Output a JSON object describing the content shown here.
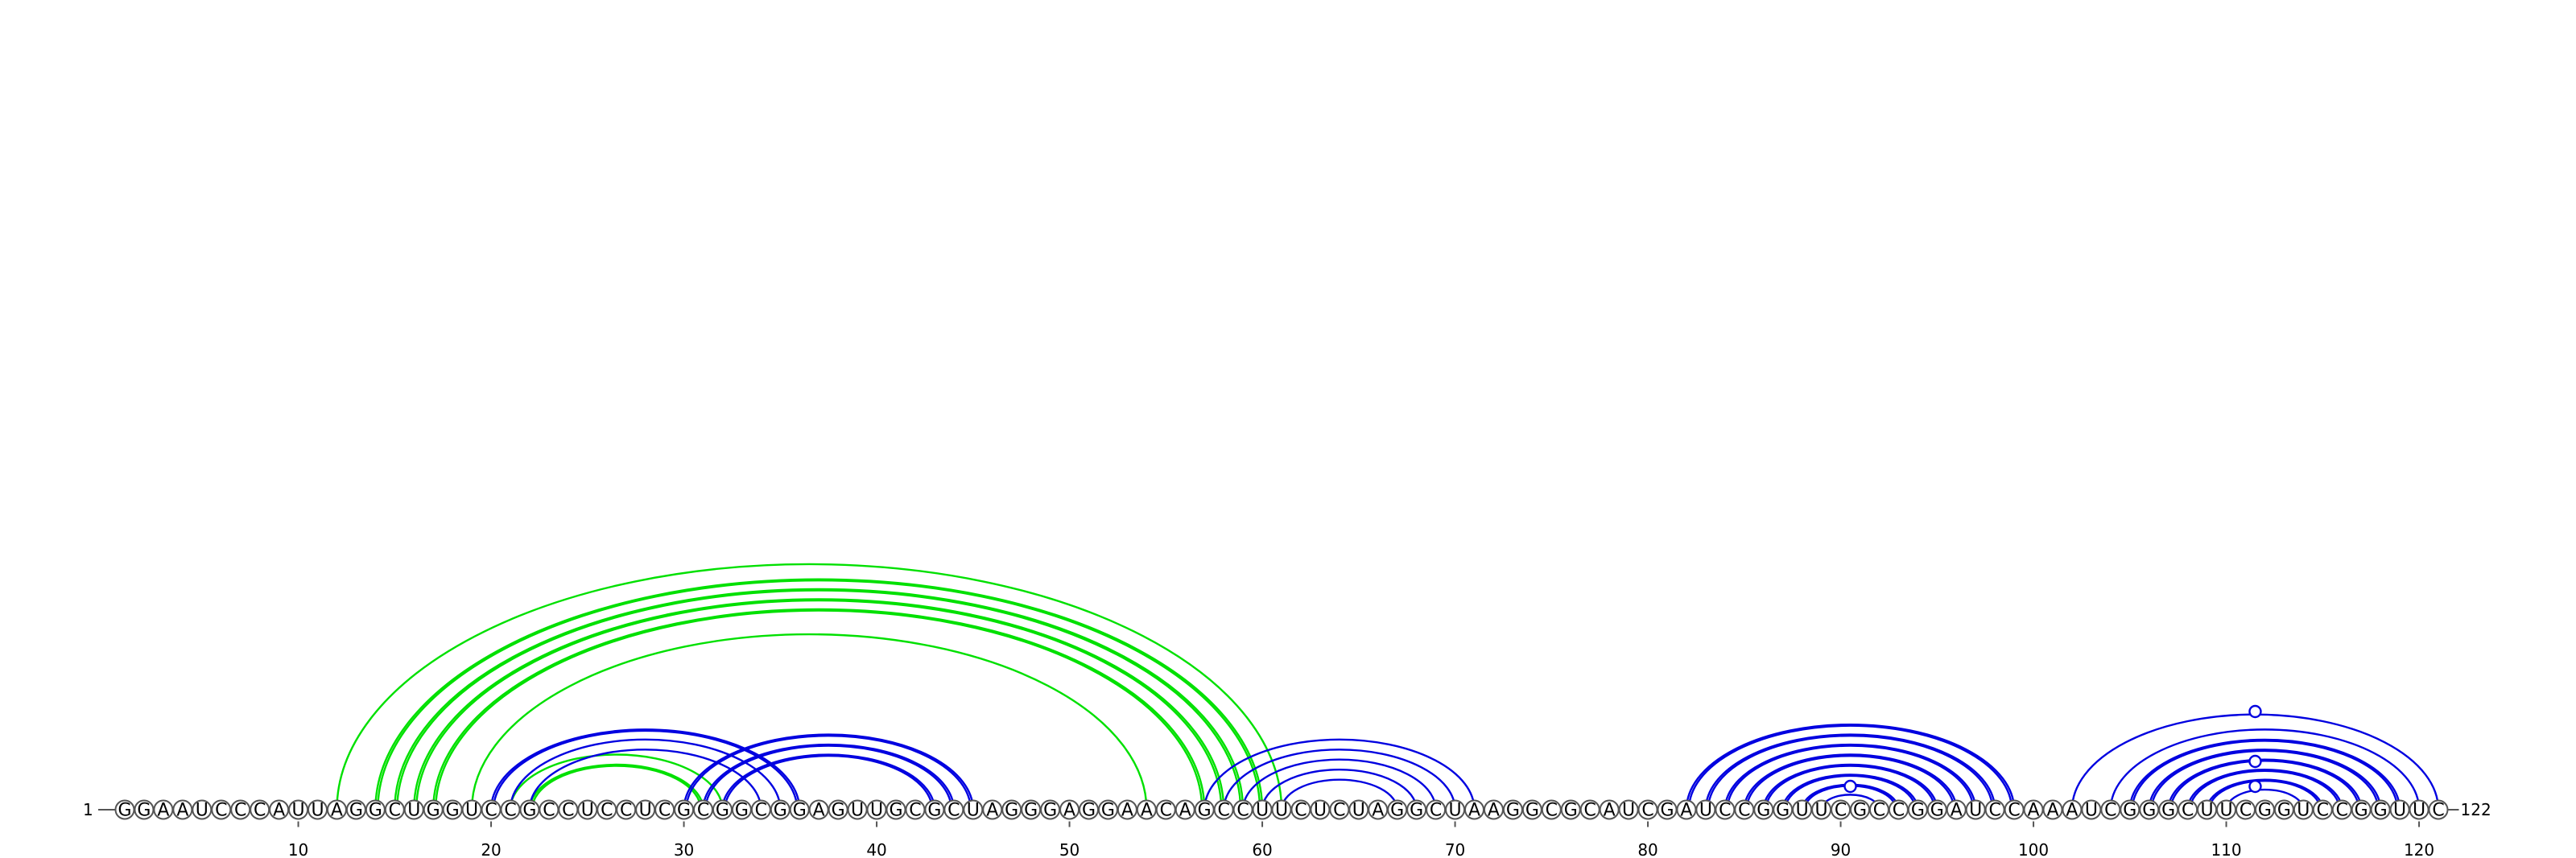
{
  "sequence": "GGAAUCCCAUUAGGCUGGUCCGCCUCCUCGCGGCGGAGUUGCGCUAGGGAGGAACAGCCUUCUCUAGGCUAAGGCGCAUCGAUCCGGUUCGCCGGAUCCAAAUCGGGCUUCGGUCCGGUUC",
  "start_label": "1",
  "end_label": "122",
  "ticks": [
    10,
    20,
    30,
    40,
    50,
    60,
    70,
    80,
    90,
    100,
    110,
    120
  ],
  "colors": {
    "green": "#00e000",
    "blue": "#0000e0",
    "axis": "#555555"
  },
  "arc_groups": [
    {
      "name": "green-long-helix",
      "color": "#00e000",
      "pairs": [
        [
          12,
          61
        ],
        [
          14,
          60
        ],
        [
          15,
          59
        ],
        [
          16,
          58
        ],
        [
          17,
          57
        ],
        [
          19,
          54
        ]
      ],
      "double": [
        false,
        true,
        true,
        true,
        true,
        false
      ]
    },
    {
      "name": "green-small",
      "color": "#00e000",
      "pairs": [
        [
          21,
          32
        ],
        [
          22,
          31
        ]
      ],
      "double": [
        false,
        true
      ]
    },
    {
      "name": "blue-helix-a",
      "color": "#0000e0",
      "pairs": [
        [
          20,
          36
        ],
        [
          21,
          35
        ],
        [
          22,
          34
        ]
      ],
      "double": [
        true,
        false,
        false
      ]
    },
    {
      "name": "blue-helix-b",
      "color": "#0000e0",
      "pairs": [
        [
          30,
          45
        ],
        [
          31,
          44
        ],
        [
          32,
          43
        ]
      ],
      "double": [
        true,
        true,
        true
      ]
    },
    {
      "name": "blue-hairpin-c",
      "color": "#0000e0",
      "pairs": [
        [
          57,
          71
        ],
        [
          58,
          70
        ],
        [
          59,
          69
        ],
        [
          60,
          68
        ],
        [
          61,
          67
        ]
      ],
      "double": [
        false,
        false,
        false,
        false,
        false
      ]
    },
    {
      "name": "blue-hairpin-d",
      "color": "#0000e0",
      "pairs": [
        [
          82,
          99
        ],
        [
          83,
          98
        ],
        [
          84,
          97
        ],
        [
          85,
          96
        ],
        [
          86,
          95
        ],
        [
          87,
          94
        ],
        [
          88,
          93
        ],
        [
          89,
          92
        ]
      ],
      "double": [
        true,
        true,
        true,
        true,
        true,
        true,
        true,
        false
      ]
    },
    {
      "name": "blue-hairpin-e",
      "color": "#0000e0",
      "pairs": [
        [
          102,
          121
        ],
        [
          104,
          120
        ],
        [
          105,
          119
        ],
        [
          106,
          118
        ],
        [
          107,
          117
        ],
        [
          108,
          116
        ],
        [
          109,
          115
        ],
        [
          110,
          114
        ]
      ],
      "double": [
        false,
        false,
        true,
        true,
        true,
        true,
        true,
        false
      ]
    }
  ],
  "markers": [
    90.5,
    111.5,
    111.5,
    111.5
  ]
}
